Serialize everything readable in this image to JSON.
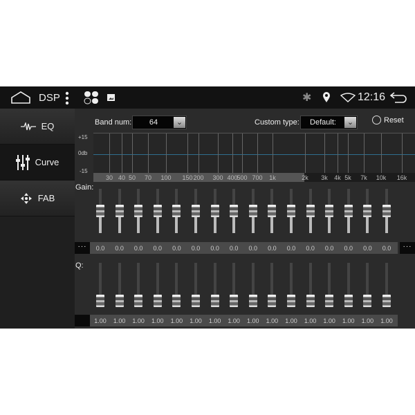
{
  "status_bar": {
    "title": "DSP",
    "time": "12:16",
    "icons": [
      "home-icon",
      "more-vert-icon",
      "apps-icon",
      "image-icon",
      "bluetooth-icon",
      "location-icon",
      "wifi-icon",
      "back-icon"
    ]
  },
  "sidebar": {
    "items": [
      {
        "label": "EQ",
        "icon": "waveform-icon"
      },
      {
        "label": "Curve",
        "icon": "sliders-icon",
        "active": true
      },
      {
        "label": "FAB",
        "icon": "fader-balance-icon"
      }
    ]
  },
  "controls": {
    "band_num_label": "Band num:",
    "band_num_value": "64",
    "custom_type_label": "Custom type:",
    "custom_type_value": "Default:",
    "reset_label": "Reset"
  },
  "graph": {
    "y_labels": [
      "+15",
      "0db",
      "-15"
    ],
    "x_ticks": [
      "30",
      "40",
      "50",
      "70",
      "100",
      "150",
      "200",
      "300",
      "400",
      "500",
      "700",
      "1k",
      "2k",
      "3k",
      "4k",
      "5k",
      "7k",
      "10k",
      "16k"
    ]
  },
  "gain": {
    "label": "Gain:",
    "values": [
      "0.0",
      "0.0",
      "0.0",
      "0.0",
      "0.0",
      "0.0",
      "0.0",
      "0.0",
      "0.0",
      "0.0",
      "0.0",
      "0.0",
      "0.0",
      "0.0",
      "0.0",
      "0.0"
    ],
    "more_label": "···"
  },
  "q": {
    "label": "Q:",
    "values": [
      "1.00",
      "1.00",
      "1.00",
      "1.00",
      "1.00",
      "1.00",
      "1.00",
      "1.00",
      "1.00",
      "1.00",
      "1.00",
      "1.00",
      "1.00",
      "1.00",
      "1.00",
      "1.00"
    ]
  },
  "colors": {
    "zero_line": "#2f6f8f"
  }
}
